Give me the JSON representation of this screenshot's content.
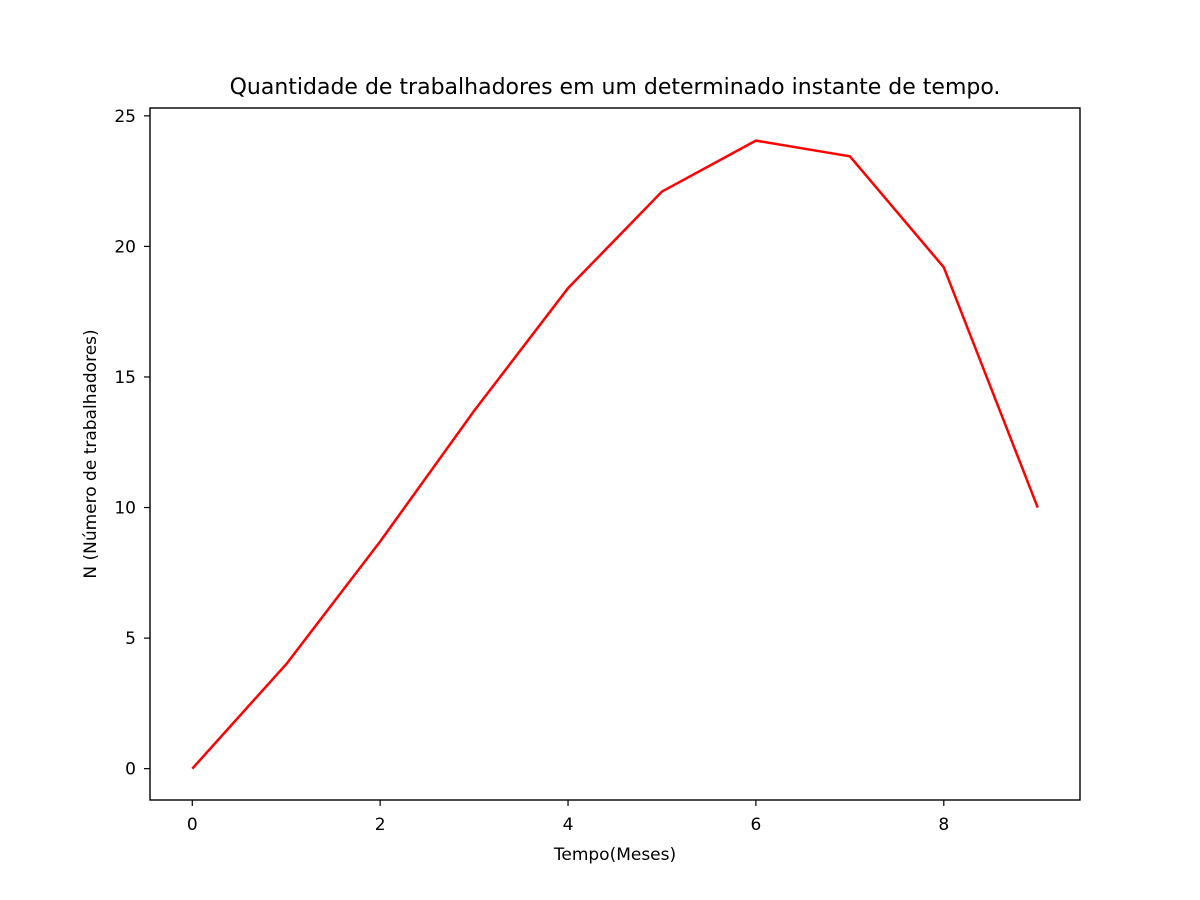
{
  "chart_data": {
    "type": "line",
    "title": "Quantidade de trabalhadores em um determinado instante de tempo.",
    "xlabel": "Tempo(Meses)",
    "ylabel": "N (Número de trabalhadores)",
    "xlim": [
      -0.45,
      9.45
    ],
    "ylim": [
      -1.2,
      25.3
    ],
    "x_ticks": [
      0,
      2,
      4,
      6,
      8
    ],
    "y_ticks": [
      0,
      5,
      10,
      15,
      20,
      25
    ],
    "grid": false,
    "series": [
      {
        "color": "#ff0000",
        "x": [
          0,
          1,
          2,
          3,
          4,
          5,
          6,
          7,
          8,
          9
        ],
        "y": [
          0,
          4.0,
          8.7,
          13.7,
          18.4,
          22.1,
          24.05,
          23.45,
          19.2,
          10.0
        ]
      }
    ]
  }
}
